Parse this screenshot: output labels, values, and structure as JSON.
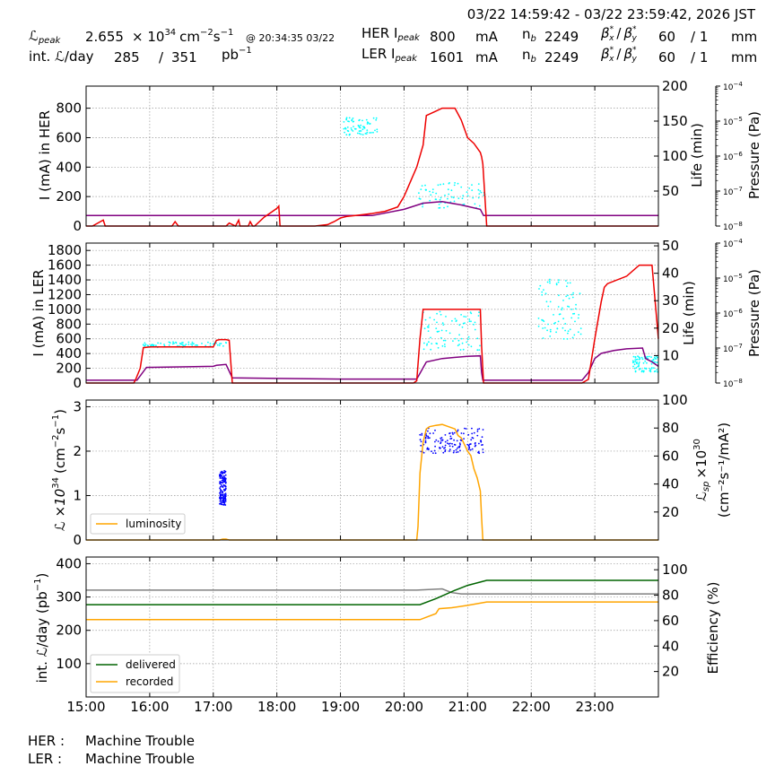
{
  "header": {
    "time_range": "03/22 14:59:42 - 03/22 23:59:42, 2026 JST",
    "lpeak_label": "ℒ",
    "lpeak_sub": "peak",
    "lpeak_value": "2.655",
    "lpeak_exp": "× 10",
    "lpeak_exp_sup": "34",
    "lpeak_unit": "cm",
    "lpeak_unit_sup1": "−2",
    "lpeak_unit_s": "s",
    "lpeak_unit_sup2": "−1",
    "lpeak_time": "@ 20:34:35 03/22",
    "intl_label": "int. ℒ/day",
    "intl_value": "285",
    "intl_slash": "/",
    "intl_max": "351",
    "intl_unit": "pb",
    "intl_unit_sup": "−1",
    "her_label": "HER I",
    "her_sub": "peak",
    "her_value": "800",
    "her_unit": "mA",
    "her_nb_label": "n",
    "her_nb_sub": "b",
    "her_nb": "2249",
    "her_beta": "β",
    "her_beta_x": "x",
    "her_beta_y": "y",
    "her_beta_star": "*",
    "her_beta_slash": "/",
    "her_bx": "60",
    "her_by": "/ 1",
    "her_beta_unit": "mm",
    "ler_label": "LER I",
    "ler_sub": "peak",
    "ler_value": "1601",
    "ler_unit": "mA",
    "ler_nb_label": "n",
    "ler_nb_sub": "b",
    "ler_nb": "2249",
    "ler_beta": "β",
    "ler_beta_x": "x",
    "ler_beta_y": "y",
    "ler_beta_star": "*",
    "ler_beta_slash": "/",
    "ler_bx": "60",
    "ler_by": "/ 1",
    "ler_beta_unit": "mm"
  },
  "status": {
    "her_label": "HER :",
    "her_value": "Machine Trouble",
    "ler_label": "LER :",
    "ler_value": "Machine Trouble"
  },
  "colors": {
    "current": "#ee0000",
    "life": "#00ffff",
    "pressure": "#800080",
    "lumi": "#ffa500",
    "lsp": "#0000ff",
    "delivered": "#006400",
    "recorded": "#ffa500",
    "efficiency": "#808080",
    "grid": "#999999"
  },
  "chart_data": [
    {
      "type": "line",
      "id": "her",
      "ylabel": "I (mA) in HER",
      "y2label": "Life (min)",
      "y3label": "Pressure (Pa)",
      "ylim": [
        0,
        950
      ],
      "yticks": [
        0,
        200,
        400,
        600,
        800
      ],
      "y2lim": [
        0,
        200
      ],
      "y2ticks": [
        50,
        100,
        150,
        200
      ],
      "y3ticks": [
        "10",
        "10",
        "10",
        "10",
        "10"
      ],
      "y3ticks_sup": [
        "−8",
        "−7",
        "−6",
        "−5",
        "−4"
      ],
      "xlim": [
        15.0,
        24.0
      ],
      "current": {
        "x": [
          15.0,
          15.1,
          15.27,
          15.3,
          15.35,
          15.4,
          15.6,
          16.0,
          16.35,
          16.4,
          16.45,
          16.6,
          16.9,
          17.0,
          17.2,
          17.25,
          17.35,
          17.4,
          17.42,
          17.55,
          17.58,
          17.62,
          17.65,
          17.8,
          17.9,
          18.0,
          18.03,
          18.05,
          18.2,
          18.4,
          18.6,
          18.8,
          18.85,
          18.9,
          19.0,
          19.1,
          19.3,
          19.5,
          19.7,
          19.9,
          20.0,
          20.1,
          20.2,
          20.3,
          20.35,
          20.5,
          20.6,
          20.7,
          20.8,
          20.9,
          21.0,
          21.1,
          21.2,
          21.22,
          21.24,
          21.3,
          21.5,
          22.0,
          23.0,
          24.0
        ],
        "y": [
          0,
          0,
          40,
          0,
          0,
          0,
          0,
          0,
          0,
          30,
          0,
          0,
          0,
          0,
          0,
          20,
          0,
          40,
          0,
          0,
          30,
          0,
          0,
          60,
          90,
          120,
          135,
          0,
          0,
          0,
          0,
          10,
          20,
          30,
          55,
          65,
          75,
          85,
          100,
          130,
          200,
          300,
          400,
          550,
          750,
          780,
          800,
          800,
          800,
          720,
          600,
          560,
          500,
          470,
          420,
          0,
          0,
          0,
          0,
          0
        ]
      },
      "pressure": {
        "x": [
          15.0,
          19.5,
          20.0,
          20.3,
          20.6,
          20.9,
          21.2,
          21.25,
          24.0
        ],
        "y": [
          2e-08,
          2e-08,
          3e-08,
          4.5e-08,
          5e-08,
          4e-08,
          3e-08,
          2e-08,
          2e-08
        ]
      },
      "life_segments": [
        {
          "x": [
            19.05,
            19.6
          ],
          "y": [
            130,
            155
          ]
        },
        {
          "x": [
            20.2,
            21.3
          ],
          "y": [
            25,
            62
          ]
        }
      ]
    },
    {
      "type": "line",
      "id": "ler",
      "ylabel": "I (mA) in LER",
      "y2label": "Life (min)",
      "y3label": "Pressure (Pa)",
      "ylim": [
        0,
        1900
      ],
      "yticks": [
        0,
        200,
        400,
        600,
        800,
        1000,
        1200,
        1400,
        1600,
        1800
      ],
      "y2lim": [
        0,
        51
      ],
      "y2ticks": [
        10,
        20,
        30,
        40,
        50
      ],
      "y3ticks": [
        "10",
        "10",
        "10",
        "10",
        "10"
      ],
      "y3ticks_sup": [
        "−8",
        "−7",
        "−6",
        "−5",
        "−4"
      ],
      "xlim": [
        15.0,
        24.0
      ],
      "current": {
        "x": [
          15.0,
          15.75,
          15.78,
          15.85,
          15.9,
          16.0,
          16.5,
          17.0,
          17.05,
          17.1,
          17.2,
          17.25,
          17.3,
          18.0,
          19.0,
          20.0,
          20.15,
          20.2,
          20.25,
          20.3,
          20.5,
          21.0,
          21.2,
          21.22,
          21.25,
          22.0,
          22.5,
          22.8,
          22.9,
          23.0,
          23.1,
          23.15,
          23.2,
          23.5,
          23.7,
          23.8,
          23.9,
          24.0
        ],
        "y": [
          0,
          0,
          50,
          200,
          480,
          490,
          490,
          490,
          580,
          590,
          590,
          580,
          0,
          0,
          0,
          0,
          0,
          30,
          600,
          1000,
          1000,
          1000,
          1000,
          500,
          0,
          0,
          0,
          0,
          50,
          600,
          1100,
          1300,
          1350,
          1450,
          1600,
          1600,
          1600,
          600
        ]
      },
      "pressure": {
        "x": [
          15.0,
          15.8,
          15.95,
          16.5,
          17.0,
          17.05,
          17.2,
          17.3,
          18.0,
          19.0,
          20.0,
          20.2,
          20.35,
          20.6,
          21.0,
          21.2,
          21.22,
          21.24,
          22.0,
          22.8,
          22.9,
          23.0,
          23.1,
          23.3,
          23.5,
          23.75,
          23.8,
          23.9,
          24.0
        ],
        "y": [
          1.2e-08,
          1.2e-08,
          2.8e-08,
          2.9e-08,
          3e-08,
          3.2e-08,
          3.4e-08,
          1.4e-08,
          1.35e-08,
          1.3e-08,
          1.3e-08,
          1.3e-08,
          4e-08,
          5e-08,
          5.8e-08,
          6e-08,
          2e-08,
          1.2e-08,
          1.2e-08,
          1.2e-08,
          2e-08,
          5e-08,
          7e-08,
          8.5e-08,
          9.5e-08,
          1e-07,
          5e-08,
          4e-08,
          3e-08
        ]
      },
      "life_segments": [
        {
          "x": [
            15.9,
            17.25
          ],
          "y": [
            13,
            15
          ]
        },
        {
          "x": [
            20.3,
            21.2
          ],
          "y": [
            12,
            26
          ]
        },
        {
          "x": [
            22.1,
            22.8
          ],
          "y": [
            16,
            38
          ]
        },
        {
          "x": [
            23.6,
            24.0
          ],
          "y": [
            4,
            10
          ]
        }
      ]
    },
    {
      "type": "line",
      "id": "lumi",
      "ylabel": "ℒ ×10",
      "ylabel_sup": "34",
      "ylabel_unit": "(cm",
      "ylabel_unit_sup": "−2",
      "ylabel_unit2": "s",
      "ylabel_unit2_sup": "−1",
      "ylabel_close": ")",
      "y2label": "ℒ",
      "y2label_sub": "sp",
      "y2label_rest": "×10",
      "y2label_sup": "30",
      "y2label_unit": "(cm⁻²s⁻¹/mA²)",
      "ylim": [
        0,
        3.15
      ],
      "yticks": [
        0,
        1,
        2,
        3
      ],
      "y2lim": [
        0,
        100
      ],
      "y2ticks": [
        20,
        40,
        60,
        80,
        100
      ],
      "xlim": [
        15.0,
        24.0
      ],
      "legend": [
        "luminosity"
      ],
      "lumi": {
        "x": [
          15.0,
          17.1,
          17.15,
          17.2,
          17.25,
          20.2,
          20.22,
          20.25,
          20.3,
          20.35,
          20.4,
          20.5,
          20.6,
          20.7,
          20.8,
          20.85,
          20.9,
          21.0,
          21.05,
          21.1,
          21.15,
          21.2,
          21.22,
          21.24,
          21.3,
          24.0
        ],
        "y": [
          0,
          0,
          0.02,
          0.02,
          0,
          0,
          0.3,
          1.5,
          2.2,
          2.5,
          2.55,
          2.58,
          2.6,
          2.55,
          2.5,
          2.35,
          2.3,
          2.0,
          1.9,
          1.6,
          1.4,
          1.1,
          0.5,
          0.0,
          0,
          0
        ]
      },
      "lsp_segments": [
        {
          "x": [
            17.1,
            17.2
          ],
          "y": [
            25,
            50
          ]
        },
        {
          "x": [
            20.22,
            21.25
          ],
          "y": [
            62,
            80
          ]
        }
      ]
    },
    {
      "type": "line",
      "id": "intlumi",
      "ylabel": "int. ℒ/day (pb",
      "ylabel_sup": "−1",
      "ylabel_close": ")",
      "y2label": "Efficiency (%)",
      "ylim": [
        0,
        420
      ],
      "yticks": [
        100,
        200,
        300,
        400
      ],
      "y2lim": [
        0,
        110
      ],
      "y2ticks": [
        20,
        40,
        60,
        80,
        100
      ],
      "xlim": [
        15.0,
        24.0
      ],
      "xticks": [
        "15:00",
        "16:00",
        "17:00",
        "18:00",
        "19:00",
        "20:00",
        "21:00",
        "22:00",
        "23:00"
      ],
      "legend": [
        "delivered",
        "recorded"
      ],
      "delivered": {
        "x": [
          15.0,
          20.25,
          20.5,
          20.8,
          21.0,
          21.3,
          24.0
        ],
        "y": [
          277,
          277,
          295,
          320,
          335,
          350,
          350
        ]
      },
      "recorded": {
        "x": [
          15.0,
          20.25,
          20.5,
          20.55,
          20.75,
          21.0,
          21.3,
          24.0
        ],
        "y": [
          232,
          232,
          250,
          265,
          268,
          275,
          285,
          285
        ]
      },
      "efficiency": {
        "x": [
          15.0,
          20.2,
          20.6,
          20.75,
          20.9,
          24.0
        ],
        "y": [
          84,
          84,
          85,
          82,
          81,
          81
        ]
      }
    }
  ]
}
